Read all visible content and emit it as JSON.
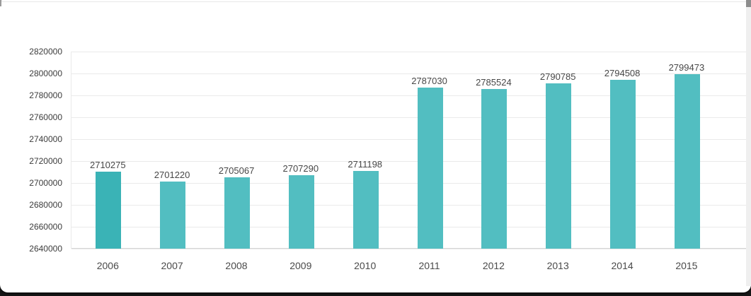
{
  "page": {
    "background_color": "#161616",
    "card_color": "#ffffff",
    "top_border_color": "#e7e7e7"
  },
  "scrollbar": {
    "track_color": "#efefef",
    "thumb_color": "#8d8d8d"
  },
  "chart_data": {
    "type": "bar",
    "title": "",
    "categories": [
      "2006",
      "2007",
      "2008",
      "2009",
      "2010",
      "2011",
      "2012",
      "2013",
      "2014",
      "2015"
    ],
    "values": [
      2710275,
      2701220,
      2705067,
      2707290,
      2711198,
      2787030,
      2785524,
      2790785,
      2794508,
      2799473
    ],
    "data_labels": [
      "2710275",
      "2701220",
      "2705067",
      "2707290",
      "2711198",
      "2787030",
      "2785524",
      "2790785",
      "2794508",
      "2799473"
    ],
    "ylim": [
      2640000,
      2820000
    ],
    "ytick_step": 20000,
    "yticks": [
      2820000,
      2800000,
      2780000,
      2760000,
      2740000,
      2720000,
      2700000,
      2680000,
      2660000,
      2640000
    ],
    "grid": "horizontal",
    "legend": "none",
    "xlabel": "",
    "ylabel": "",
    "bar_color": "#52bec1",
    "highlighted_bar": {
      "category": "2006",
      "color": "#3ab3b6"
    },
    "text_colors": {
      "value_label": "#474747",
      "axis_tick": "#3c3c3c",
      "category_label": "#4a4a4a"
    }
  }
}
